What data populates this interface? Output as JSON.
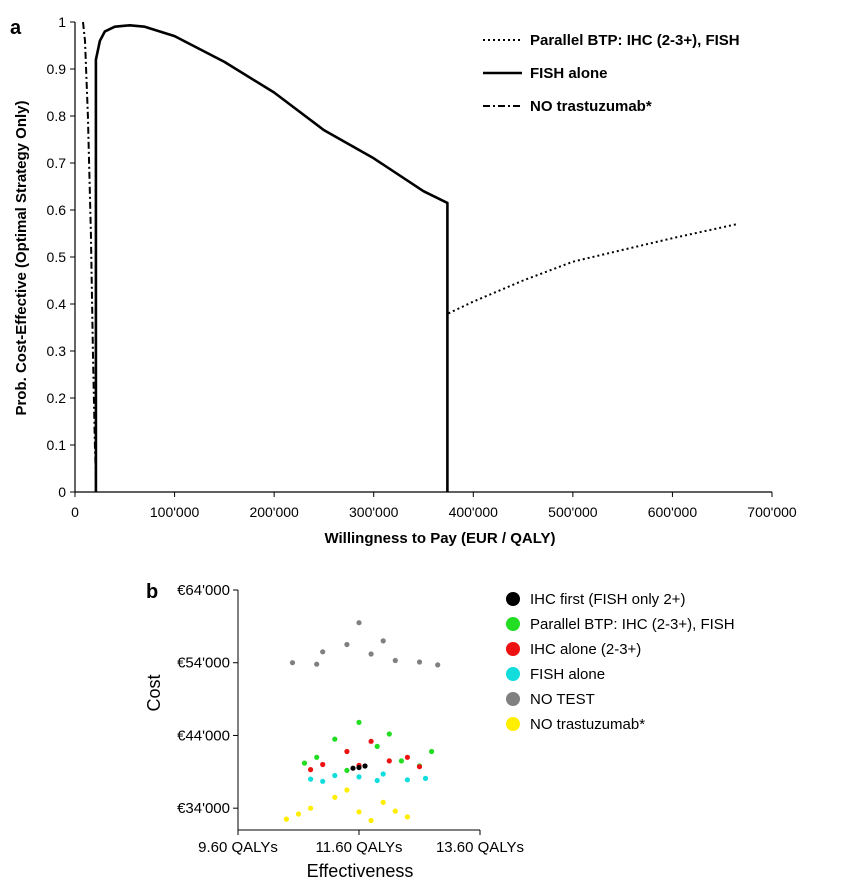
{
  "panels": {
    "a_label": "a",
    "b_label": "b"
  },
  "chart_data": [
    {
      "type": "line",
      "panel": "a",
      "title": "",
      "xlabel": "Willingness to Pay (EUR / QALY)",
      "ylabel": "Prob. Cost-Effective (Optimal Strategy Only)",
      "xlim": [
        0,
        700000
      ],
      "ylim": [
        0,
        1
      ],
      "x_ticks": [
        0,
        100000,
        200000,
        300000,
        400000,
        500000,
        600000,
        700000
      ],
      "x_tick_labels": [
        "0",
        "100'000",
        "200'000",
        "300'000",
        "400'000",
        "500'000",
        "600'000",
        "700'000"
      ],
      "y_ticks": [
        0,
        0.1,
        0.2,
        0.3,
        0.4,
        0.5,
        0.6,
        0.7,
        0.8,
        0.9,
        1
      ],
      "y_tick_labels": [
        "0",
        "0.1",
        "0.2",
        "0.3",
        "0.4",
        "0.5",
        "0.6",
        "0.7",
        "0.8",
        "0.9",
        "1"
      ],
      "grid": false,
      "legend_position": "top-right",
      "series": [
        {
          "name": "Parallel BTP: IHC (2-3+), FISH",
          "style": "dotted",
          "color": "#000000",
          "points": [
            [
              375000,
              0.38
            ],
            [
              400000,
              0.405
            ],
            [
              450000,
              0.45
            ],
            [
              500000,
              0.49
            ],
            [
              550000,
              0.515
            ],
            [
              600000,
              0.54
            ],
            [
              665000,
              0.57
            ]
          ]
        },
        {
          "name": "FISH alone",
          "style": "solid",
          "color": "#000000",
          "points": [
            [
              21000,
              0
            ],
            [
              21000,
              0.92
            ],
            [
              25000,
              0.96
            ],
            [
              30000,
              0.98
            ],
            [
              40000,
              0.99
            ],
            [
              55000,
              0.993
            ],
            [
              70000,
              0.99
            ],
            [
              100000,
              0.97
            ],
            [
              150000,
              0.915
            ],
            [
              200000,
              0.85
            ],
            [
              250000,
              0.77
            ],
            [
              300000,
              0.71
            ],
            [
              350000,
              0.64
            ],
            [
              374000,
              0.615
            ],
            [
              374000,
              0
            ]
          ]
        },
        {
          "name": "NO trastuzumab*",
          "style": "dash-dot",
          "color": "#000000",
          "points": [
            [
              8000,
              1
            ],
            [
              10000,
              0.96
            ],
            [
              13000,
              0.8
            ],
            [
              16000,
              0.55
            ],
            [
              18000,
              0.3
            ],
            [
              20000,
              0.1
            ],
            [
              21000,
              0.03
            ]
          ]
        }
      ]
    },
    {
      "type": "scatter",
      "panel": "b",
      "title": "",
      "xlabel": "Effectiveness",
      "ylabel": "Cost",
      "xlim": [
        9.6,
        13.6
      ],
      "ylim": [
        31000,
        64000
      ],
      "x_tick_labels": [
        "9.60 QALYs",
        "11.60 QALYs",
        "13.60 QALYs"
      ],
      "x_ticks": [
        9.6,
        11.6,
        13.6
      ],
      "y_tick_labels": [
        "€34'000",
        "€44'000",
        "€54'000",
        "€64'000"
      ],
      "y_ticks": [
        34000,
        44000,
        54000,
        64000
      ],
      "legend_position": "right",
      "series": [
        {
          "name": "IHC first (FISH only 2+)",
          "color": "#000000",
          "points": [
            [
              11.6,
              39600
            ],
            [
              11.7,
              39800
            ],
            [
              11.5,
              39500
            ]
          ]
        },
        {
          "name": "Parallel BTP: IHC (2-3+), FISH",
          "color": "#22dd22",
          "points": [
            [
              10.9,
              41000
            ],
            [
              11.2,
              43500
            ],
            [
              11.6,
              45800
            ],
            [
              11.9,
              42500
            ],
            [
              12.3,
              40500
            ],
            [
              12.8,
              41800
            ],
            [
              11.4,
              39200
            ],
            [
              12.1,
              44200
            ],
            [
              10.7,
              40200
            ],
            [
              12.6,
              39800
            ]
          ]
        },
        {
          "name": "IHC alone (2-3+)",
          "color": "#ee1111",
          "points": [
            [
              11.0,
              40000
            ],
            [
              11.4,
              41800
            ],
            [
              11.8,
              43200
            ],
            [
              12.1,
              40500
            ],
            [
              12.4,
              41000
            ],
            [
              10.8,
              39300
            ],
            [
              11.6,
              39900
            ],
            [
              12.6,
              39700
            ]
          ]
        },
        {
          "name": "FISH alone",
          "color": "#11dddd",
          "points": [
            [
              10.8,
              38000
            ],
            [
              11.2,
              38500
            ],
            [
              11.6,
              38300
            ],
            [
              12.0,
              38700
            ],
            [
              12.4,
              37900
            ],
            [
              12.7,
              38100
            ],
            [
              11.0,
              37700
            ],
            [
              11.9,
              37800
            ]
          ]
        },
        {
          "name": "NO TEST",
          "color": "#808080",
          "points": [
            [
              10.5,
              54000
            ],
            [
              11.0,
              55500
            ],
            [
              11.4,
              56500
            ],
            [
              11.8,
              55200
            ],
            [
              12.2,
              54300
            ],
            [
              12.6,
              54100
            ],
            [
              11.6,
              59500
            ],
            [
              12.0,
              57000
            ],
            [
              10.9,
              53800
            ],
            [
              12.9,
              53700
            ]
          ]
        },
        {
          "name": "NO trastuzumab*",
          "color": "#ffee00",
          "points": [
            [
              10.4,
              32500
            ],
            [
              10.8,
              34000
            ],
            [
              11.2,
              35500
            ],
            [
              11.6,
              33500
            ],
            [
              12.0,
              34800
            ],
            [
              12.4,
              32800
            ],
            [
              11.4,
              36500
            ],
            [
              11.8,
              32300
            ],
            [
              10.6,
              33200
            ],
            [
              12.2,
              33600
            ]
          ]
        }
      ]
    }
  ]
}
